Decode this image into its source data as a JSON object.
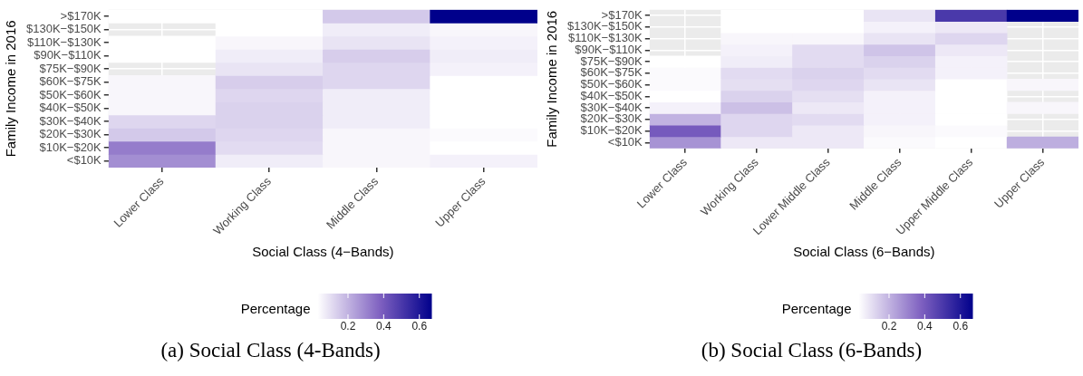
{
  "chart_data": [
    {
      "type": "heatmap",
      "xlabel": "Social Class (4−Bands)",
      "ylabel": "Family Income in 2016",
      "clabel": "Percentage",
      "annotations": [
        "(a) Social Class (4-Bands)"
      ],
      "grid": true,
      "categories": [
        "Lower Class",
        "Working Class",
        "Middle Class",
        "Upper Class"
      ],
      "y_categories": [
        ">$170K",
        "$130K−$150K",
        "$110K−$130K",
        "$90K−$110K",
        "$75K−$90K",
        "$60K−$75K",
        "$50K−$60K",
        "$40K−$50K",
        "$30K−$40K",
        "$20K−$30K",
        "$10K−$20K",
        "<$10K"
      ],
      "cells": [
        [
          0.03,
          0.03,
          0.15,
          0.67
        ],
        [
          null,
          0.03,
          0.07,
          0.05
        ],
        [
          0.03,
          0.05,
          0.09,
          0.06
        ],
        [
          0.03,
          0.07,
          0.14,
          0.07
        ],
        [
          null,
          0.09,
          0.12,
          0.06
        ],
        [
          0.05,
          0.14,
          0.12,
          0.03
        ],
        [
          0.05,
          0.12,
          0.07,
          0.03
        ],
        [
          0.05,
          0.13,
          0.07,
          0.03
        ],
        [
          0.12,
          0.13,
          0.07,
          0.03
        ],
        [
          0.15,
          0.12,
          0.05,
          0.04
        ],
        [
          0.32,
          0.11,
          0.05,
          0.03
        ],
        [
          0.28,
          0.07,
          0.05,
          0.06
        ]
      ],
      "clim": [
        0.03,
        0.67
      ],
      "cticks": [
        0.2,
        0.4,
        0.6
      ]
    },
    {
      "type": "heatmap",
      "xlabel": "Social Class (6−Bands)",
      "ylabel": "Family Income in 2016",
      "clabel": "Percentage",
      "annotations": [
        "(b) Social Class (6-Bands)"
      ],
      "grid": true,
      "categories": [
        "Lower Class",
        "Working Class",
        "Lower Middle Class",
        "Middle Class",
        "Upper Middle Class",
        "Upper Class"
      ],
      "y_categories": [
        ">$170K",
        "$130K−$150K",
        "$110K−$130K",
        "$90K−$110K",
        "$75K−$90K",
        "$60K−$75K",
        "$50K−$60K",
        "$40K−$50K",
        "$30K−$40K",
        "$20K−$30K",
        "$10K−$20K",
        "<$10K"
      ],
      "cells": [
        [
          null,
          0.03,
          0.03,
          0.09,
          0.5,
          0.67
        ],
        [
          null,
          0.03,
          0.03,
          0.06,
          0.08,
          null
        ],
        [
          null,
          0.05,
          0.05,
          0.09,
          0.12,
          null
        ],
        [
          null,
          0.06,
          0.11,
          0.16,
          0.08,
          null
        ],
        [
          0.03,
          0.07,
          0.11,
          0.13,
          0.06,
          null
        ],
        [
          0.04,
          0.11,
          0.13,
          0.11,
          0.06,
          null
        ],
        [
          0.04,
          0.1,
          0.12,
          0.09,
          0.03,
          0.05
        ],
        [
          0.03,
          0.13,
          0.1,
          0.06,
          0.03,
          null
        ],
        [
          0.06,
          0.17,
          0.08,
          0.06,
          0.03,
          0.05
        ],
        [
          0.2,
          0.12,
          0.11,
          0.06,
          0.03,
          null
        ],
        [
          0.4,
          0.12,
          0.08,
          0.05,
          0.04,
          null
        ],
        [
          0.27,
          0.08,
          0.08,
          0.04,
          0.03,
          0.21
        ]
      ],
      "clim": [
        0.03,
        0.67
      ],
      "cticks": [
        0.2,
        0.4,
        0.6
      ]
    }
  ]
}
